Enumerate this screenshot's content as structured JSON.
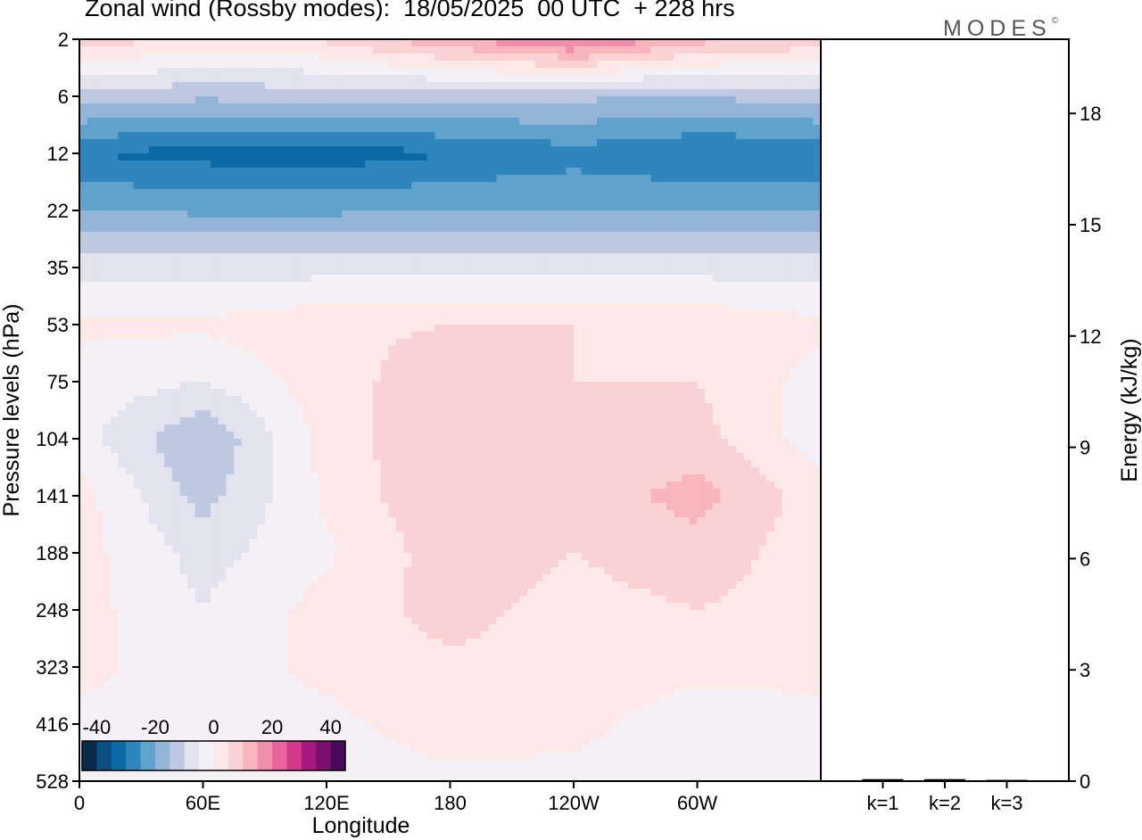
{
  "title": "Zonal wind (Rossby modes):  18/05/2025  00 UTC  + 228 hrs",
  "logo": "MODES",
  "logo_mark": "©",
  "colors": {
    "scale": [
      "#0b2a4a",
      "#0a4f80",
      "#0b6aa6",
      "#2f86bd",
      "#5fa2cc",
      "#93b6d8",
      "#bfc8e1",
      "#e3e3ef",
      "#f5f0f6",
      "#fde8e8",
      "#fbd2d4",
      "#f8b5bc",
      "#f08fab",
      "#e9639c",
      "#d43a8c",
      "#a51a7a",
      "#7b0f6c",
      "#4a0a5a"
    ],
    "frame": "#000000"
  },
  "chart_data": [
    {
      "type": "heatmap",
      "title": "Zonal wind (Rossby modes):  18/05/2025  00 UTC  + 228 hrs",
      "xlabel": "Longitude",
      "ylabel": "Pressure levels (hPa)",
      "x_ticks": [
        "0",
        "60E",
        "120E",
        "180",
        "120W",
        "60W"
      ],
      "y_ticks": [
        "2",
        "6",
        "12",
        "22",
        "35",
        "53",
        "75",
        "104",
        "141",
        "188",
        "248",
        "323",
        "416",
        "528"
      ],
      "colorbar": {
        "ticks": [
          "-40",
          "-20",
          "0",
          "20",
          "40"
        ],
        "range": [
          -45,
          45
        ],
        "step": 5
      },
      "fields": [
        {
          "level": "2",
          "lon": [
            0,
            60,
            120,
            180,
            240,
            300
          ],
          "values": [
            8,
            4,
            6,
            14,
            22,
            12
          ]
        },
        {
          "level": "6",
          "lon": [
            0,
            60,
            120,
            180,
            240,
            300
          ],
          "values": [
            -12,
            -14,
            -13,
            -13,
            -14,
            -15
          ]
        },
        {
          "level": "12",
          "lon": [
            0,
            60,
            120,
            180,
            240,
            300
          ],
          "values": [
            -30,
            -32,
            -33,
            -30,
            -27,
            -30
          ]
        },
        {
          "level": "22",
          "lon": [
            0,
            60,
            120,
            180,
            240,
            300
          ],
          "values": [
            -20,
            -21,
            -21,
            -20,
            -20,
            -20
          ]
        },
        {
          "level": "35",
          "lon": [
            0,
            60,
            120,
            180,
            240,
            300
          ],
          "values": [
            -7,
            -7,
            -7,
            -7,
            -7,
            -7
          ]
        },
        {
          "level": "53",
          "lon": [
            0,
            60,
            120,
            180,
            240,
            300
          ],
          "values": [
            1,
            1,
            4,
            5,
            5,
            4
          ]
        },
        {
          "level": "75",
          "lon": [
            0,
            60,
            120,
            180,
            240,
            300
          ],
          "values": [
            -2,
            -5,
            3,
            8,
            5,
            5
          ]
        },
        {
          "level": "104",
          "lon": [
            0,
            60,
            120,
            180,
            240,
            300
          ],
          "values": [
            -3,
            -15,
            2,
            10,
            6,
            7
          ]
        },
        {
          "level": "141",
          "lon": [
            0,
            60,
            120,
            180,
            240,
            300
          ],
          "values": [
            2,
            -12,
            1,
            10,
            7,
            12
          ]
        },
        {
          "level": "188",
          "lon": [
            0,
            60,
            120,
            180,
            240,
            300
          ],
          "values": [
            2,
            -7,
            -1,
            8,
            5,
            8
          ]
        },
        {
          "level": "248",
          "lon": [
            0,
            60,
            120,
            180,
            240,
            300
          ],
          "values": [
            2,
            -5,
            2,
            7,
            3,
            5
          ]
        },
        {
          "level": "323",
          "lon": [
            0,
            60,
            120,
            180,
            240,
            300
          ],
          "values": [
            1,
            -2,
            1,
            4,
            2,
            1
          ]
        },
        {
          "level": "416",
          "lon": [
            0,
            60,
            120,
            180,
            240,
            300
          ],
          "values": [
            -1,
            -1,
            -1,
            2,
            1,
            -2
          ]
        },
        {
          "level": "528",
          "lon": [
            0,
            60,
            120,
            180,
            240,
            300
          ],
          "values": [
            -1,
            -1,
            -2,
            -1,
            -1,
            -3
          ]
        }
      ]
    },
    {
      "type": "bar",
      "ylabel": "Energy (kJ/kg)",
      "categories": [
        "k=1",
        "k=2",
        "k=3"
      ],
      "values": [
        0.03,
        0.03,
        0.01
      ],
      "ylim": [
        0,
        20
      ],
      "y_ticks": [
        "0",
        "3",
        "6",
        "9",
        "12",
        "15",
        "18"
      ]
    }
  ]
}
